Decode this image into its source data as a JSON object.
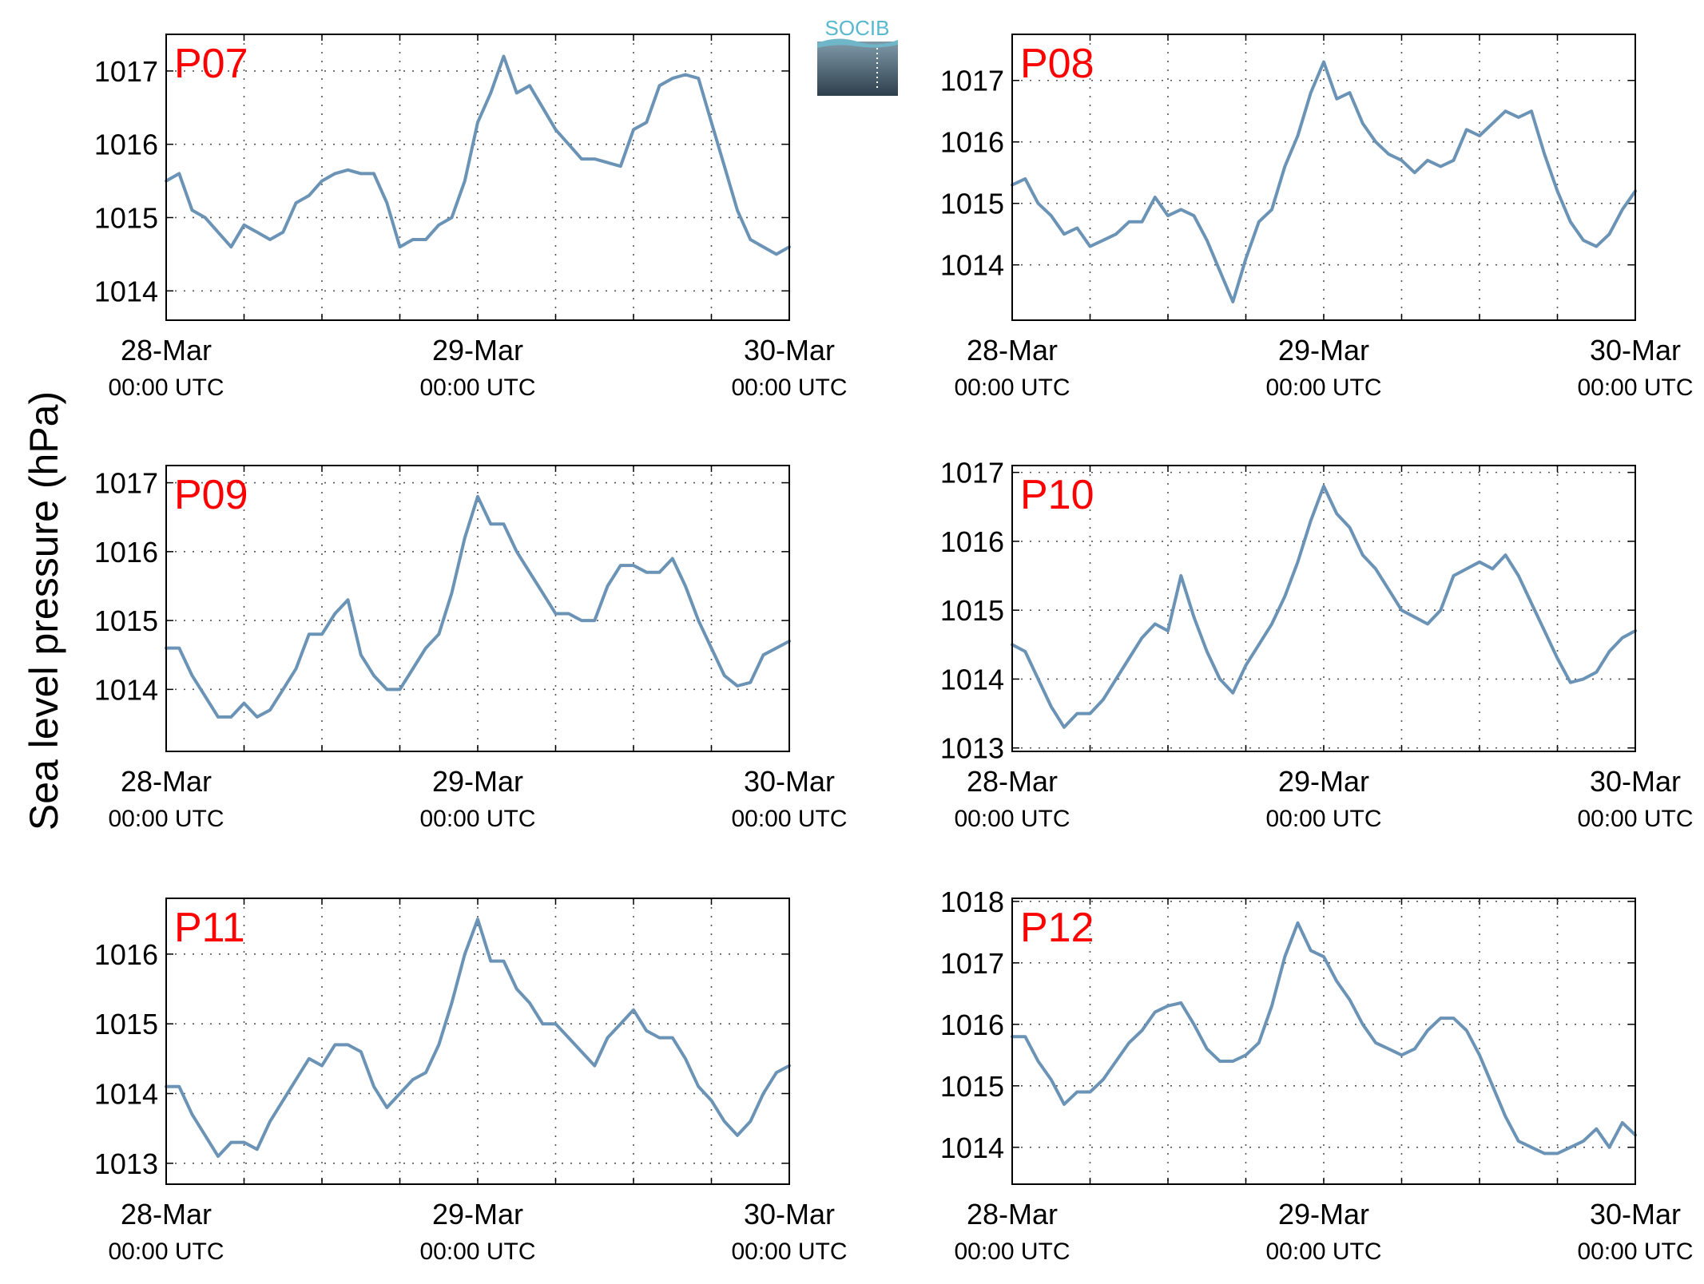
{
  "figure": {
    "ylabel": "Sea level pressure (hPa)",
    "logo_text": "SOCIB",
    "colors": {
      "line": "#6a93b5",
      "panel_label": "#ff0000",
      "axes": "#000000",
      "grid": "#555555"
    }
  },
  "chart_data": [
    {
      "type": "line",
      "title": "P07",
      "x_ticks": [
        {
          "label": "28-Mar",
          "sublabel": "00:00 UTC"
        },
        {
          "label": "29-Mar",
          "sublabel": "00:00 UTC"
        },
        {
          "label": "30-Mar",
          "sublabel": "00:00 UTC"
        }
      ],
      "x_range_hours": [
        0,
        48
      ],
      "ylim": [
        1013.6,
        1017.5
      ],
      "yticks": [
        1014,
        1015,
        1016,
        1017
      ],
      "grid": true,
      "x": [
        0,
        1,
        2,
        3,
        4,
        5,
        6,
        7,
        8,
        9,
        10,
        11,
        12,
        13,
        14,
        15,
        16,
        17,
        18,
        19,
        20,
        21,
        22,
        23,
        24,
        25,
        26,
        27,
        28,
        29,
        30,
        31,
        32,
        33,
        34,
        35,
        36,
        37,
        38,
        39,
        40,
        41,
        42,
        43,
        44,
        45,
        46,
        47,
        48
      ],
      "y": [
        1015.5,
        1015.6,
        1015.1,
        1015.0,
        1014.8,
        1014.6,
        1014.9,
        1014.8,
        1014.7,
        1014.8,
        1015.2,
        1015.3,
        1015.5,
        1015.6,
        1015.65,
        1015.6,
        1015.6,
        1015.2,
        1014.6,
        1014.7,
        1014.7,
        1014.9,
        1015.0,
        1015.5,
        1016.3,
        1016.7,
        1017.2,
        1016.7,
        1016.8,
        1016.5,
        1016.2,
        1016.0,
        1015.8,
        1015.8,
        1015.75,
        1015.7,
        1016.2,
        1016.3,
        1016.8,
        1016.9,
        1016.95,
        1016.9,
        1016.3,
        1015.7,
        1015.1,
        1014.7,
        1014.6,
        1014.5,
        1014.6
      ]
    },
    {
      "type": "line",
      "title": "P08",
      "x_ticks": [
        {
          "label": "28-Mar",
          "sublabel": "00:00 UTC"
        },
        {
          "label": "29-Mar",
          "sublabel": "00:00 UTC"
        },
        {
          "label": "30-Mar",
          "sublabel": "00:00 UTC"
        }
      ],
      "x_range_hours": [
        0,
        48
      ],
      "ylim": [
        1013.1,
        1017.75
      ],
      "yticks": [
        1014,
        1015,
        1016,
        1017
      ],
      "grid": true,
      "x": [
        0,
        1,
        2,
        3,
        4,
        5,
        6,
        7,
        8,
        9,
        10,
        11,
        12,
        13,
        14,
        15,
        16,
        17,
        18,
        19,
        20,
        21,
        22,
        23,
        24,
        25,
        26,
        27,
        28,
        29,
        30,
        31,
        32,
        33,
        34,
        35,
        36,
        37,
        38,
        39,
        40,
        41,
        42,
        43,
        44,
        45,
        46,
        47,
        48
      ],
      "y": [
        1015.3,
        1015.4,
        1015.0,
        1014.8,
        1014.5,
        1014.6,
        1014.3,
        1014.4,
        1014.5,
        1014.7,
        1014.7,
        1015.1,
        1014.8,
        1014.9,
        1014.8,
        1014.4,
        1013.9,
        1013.4,
        1014.1,
        1014.7,
        1014.9,
        1015.6,
        1016.1,
        1016.8,
        1017.3,
        1016.7,
        1016.8,
        1016.3,
        1016.0,
        1015.8,
        1015.7,
        1015.5,
        1015.7,
        1015.6,
        1015.7,
        1016.2,
        1016.1,
        1016.3,
        1016.5,
        1016.4,
        1016.5,
        1015.8,
        1015.2,
        1014.7,
        1014.4,
        1014.3,
        1014.5,
        1014.9,
        1015.2
      ]
    },
    {
      "type": "line",
      "title": "P09",
      "x_ticks": [
        {
          "label": "28-Mar",
          "sublabel": "00:00 UTC"
        },
        {
          "label": "29-Mar",
          "sublabel": "00:00 UTC"
        },
        {
          "label": "30-Mar",
          "sublabel": "00:00 UTC"
        }
      ],
      "x_range_hours": [
        0,
        48
      ],
      "ylim": [
        1013.1,
        1017.25
      ],
      "yticks": [
        1014,
        1015,
        1016,
        1017
      ],
      "grid": true,
      "x": [
        0,
        1,
        2,
        3,
        4,
        5,
        6,
        7,
        8,
        9,
        10,
        11,
        12,
        13,
        14,
        15,
        16,
        17,
        18,
        19,
        20,
        21,
        22,
        23,
        24,
        25,
        26,
        27,
        28,
        29,
        30,
        31,
        32,
        33,
        34,
        35,
        36,
        37,
        38,
        39,
        40,
        41,
        42,
        43,
        44,
        45,
        46,
        47,
        48
      ],
      "y": [
        1014.6,
        1014.6,
        1014.2,
        1013.9,
        1013.6,
        1013.6,
        1013.8,
        1013.6,
        1013.7,
        1014.0,
        1014.3,
        1014.8,
        1014.8,
        1015.1,
        1015.3,
        1014.5,
        1014.2,
        1014.0,
        1014.0,
        1014.3,
        1014.6,
        1014.8,
        1015.4,
        1016.2,
        1016.8,
        1016.4,
        1016.4,
        1016.0,
        1015.7,
        1015.4,
        1015.1,
        1015.1,
        1015.0,
        1015.0,
        1015.5,
        1015.8,
        1015.8,
        1015.7,
        1015.7,
        1015.9,
        1015.5,
        1015.0,
        1014.6,
        1014.2,
        1014.05,
        1014.1,
        1014.5,
        1014.6,
        1014.7
      ]
    },
    {
      "type": "line",
      "title": "P10",
      "x_ticks": [
        {
          "label": "28-Mar",
          "sublabel": "00:00 UTC"
        },
        {
          "label": "29-Mar",
          "sublabel": "00:00 UTC"
        },
        {
          "label": "30-Mar",
          "sublabel": "00:00 UTC"
        }
      ],
      "x_range_hours": [
        0,
        48
      ],
      "ylim": [
        1012.95,
        1017.1
      ],
      "yticks": [
        1013,
        1014,
        1015,
        1016,
        1017
      ],
      "grid": true,
      "x": [
        0,
        1,
        2,
        3,
        4,
        5,
        6,
        7,
        8,
        9,
        10,
        11,
        12,
        13,
        14,
        15,
        16,
        17,
        18,
        19,
        20,
        21,
        22,
        23,
        24,
        25,
        26,
        27,
        28,
        29,
        30,
        31,
        32,
        33,
        34,
        35,
        36,
        37,
        38,
        39,
        40,
        41,
        42,
        43,
        44,
        45,
        46,
        47,
        48
      ],
      "y": [
        1014.5,
        1014.4,
        1014.0,
        1013.6,
        1013.3,
        1013.5,
        1013.5,
        1013.7,
        1014.0,
        1014.3,
        1014.6,
        1014.8,
        1014.7,
        1015.5,
        1014.9,
        1014.4,
        1014.0,
        1013.8,
        1014.2,
        1014.5,
        1014.8,
        1015.2,
        1015.7,
        1016.3,
        1016.8,
        1016.4,
        1016.2,
        1015.8,
        1015.6,
        1015.3,
        1015.0,
        1014.9,
        1014.8,
        1015.0,
        1015.5,
        1015.6,
        1015.7,
        1015.6,
        1015.8,
        1015.5,
        1015.1,
        1014.7,
        1014.3,
        1013.95,
        1014.0,
        1014.1,
        1014.4,
        1014.6,
        1014.7
      ]
    },
    {
      "type": "line",
      "title": "P11",
      "x_ticks": [
        {
          "label": "28-Mar",
          "sublabel": "00:00 UTC"
        },
        {
          "label": "29-Mar",
          "sublabel": "00:00 UTC"
        },
        {
          "label": "30-Mar",
          "sublabel": "00:00 UTC"
        }
      ],
      "x_range_hours": [
        0,
        48
      ],
      "ylim": [
        1012.7,
        1016.8
      ],
      "yticks": [
        1013,
        1014,
        1015,
        1016
      ],
      "grid": true,
      "x": [
        0,
        1,
        2,
        3,
        4,
        5,
        6,
        7,
        8,
        9,
        10,
        11,
        12,
        13,
        14,
        15,
        16,
        17,
        18,
        19,
        20,
        21,
        22,
        23,
        24,
        25,
        26,
        27,
        28,
        29,
        30,
        31,
        32,
        33,
        34,
        35,
        36,
        37,
        38,
        39,
        40,
        41,
        42,
        43,
        44,
        45,
        46,
        47,
        48
      ],
      "y": [
        1014.1,
        1014.1,
        1013.7,
        1013.4,
        1013.1,
        1013.3,
        1013.3,
        1013.2,
        1013.6,
        1013.9,
        1014.2,
        1014.5,
        1014.4,
        1014.7,
        1014.7,
        1014.6,
        1014.1,
        1013.8,
        1014.0,
        1014.2,
        1014.3,
        1014.7,
        1015.3,
        1016.0,
        1016.5,
        1015.9,
        1015.9,
        1015.5,
        1015.3,
        1015.0,
        1015.0,
        1014.8,
        1014.6,
        1014.4,
        1014.8,
        1015.0,
        1015.2,
        1014.9,
        1014.8,
        1014.8,
        1014.5,
        1014.1,
        1013.9,
        1013.6,
        1013.4,
        1013.6,
        1014.0,
        1014.3,
        1014.4
      ]
    },
    {
      "type": "line",
      "title": "P12",
      "x_ticks": [
        {
          "label": "28-Mar",
          "sublabel": "00:00 UTC"
        },
        {
          "label": "29-Mar",
          "sublabel": "00:00 UTC"
        },
        {
          "label": "30-Mar",
          "sublabel": "00:00 UTC"
        }
      ],
      "x_range_hours": [
        0,
        48
      ],
      "ylim": [
        1013.4,
        1018.05
      ],
      "yticks": [
        1014,
        1015,
        1016,
        1017,
        1018
      ],
      "grid": true,
      "x": [
        0,
        1,
        2,
        3,
        4,
        5,
        6,
        7,
        8,
        9,
        10,
        11,
        12,
        13,
        14,
        15,
        16,
        17,
        18,
        19,
        20,
        21,
        22,
        23,
        24,
        25,
        26,
        27,
        28,
        29,
        30,
        31,
        32,
        33,
        34,
        35,
        36,
        37,
        38,
        39,
        40,
        41,
        42,
        43,
        44,
        45,
        46,
        47,
        48
      ],
      "y": [
        1015.8,
        1015.8,
        1015.4,
        1015.1,
        1014.7,
        1014.9,
        1014.9,
        1015.1,
        1015.4,
        1015.7,
        1015.9,
        1016.2,
        1016.3,
        1016.35,
        1016.0,
        1015.6,
        1015.4,
        1015.4,
        1015.5,
        1015.7,
        1016.3,
        1017.1,
        1017.65,
        1017.2,
        1017.1,
        1016.7,
        1016.4,
        1016.0,
        1015.7,
        1015.6,
        1015.5,
        1015.6,
        1015.9,
        1016.1,
        1016.1,
        1015.9,
        1015.5,
        1015.0,
        1014.5,
        1014.1,
        1014.0,
        1013.9,
        1013.9,
        1014.0,
        1014.1,
        1014.3,
        1014.0,
        1014.4,
        1014.2
      ]
    }
  ]
}
